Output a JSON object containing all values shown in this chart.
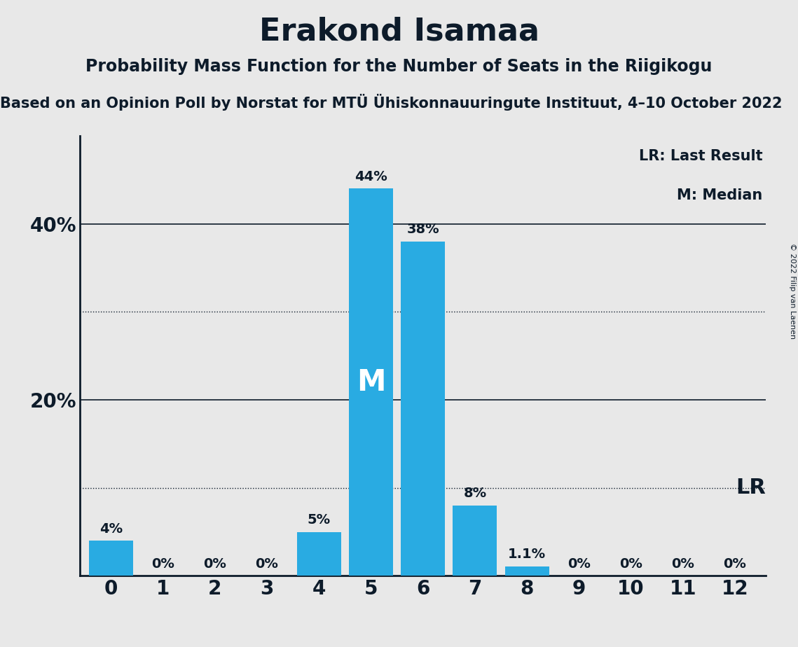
{
  "title": "Erakond Isamaa",
  "subtitle": "Probability Mass Function for the Number of Seats in the Riigikogu",
  "sub_subtitle": "Based on an Opinion Poll by Norstat for MTÜ Ühiskonnauuringute Instituut, 4–10 October 2022",
  "copyright_text": "© 2022 Filip van Laenen",
  "categories": [
    0,
    1,
    2,
    3,
    4,
    5,
    6,
    7,
    8,
    9,
    10,
    11,
    12
  ],
  "values": [
    4,
    0,
    0,
    0,
    5,
    44,
    38,
    8,
    1.1,
    0,
    0,
    0,
    0
  ],
  "bar_labels": [
    "4%",
    "0%",
    "0%",
    "0%",
    "5%",
    "44%",
    "38%",
    "8%",
    "1.1%",
    "0%",
    "0%",
    "0%",
    "0%"
  ],
  "bar_color": "#29ABE2",
  "background_color": "#E8E8E8",
  "median_bar": 5,
  "median_label": "M",
  "lr_label": "LR",
  "legend_lr": "LR: Last Result",
  "legend_m": "M: Median",
  "yticks": [
    20,
    40
  ],
  "ytick_labels": [
    "20%",
    "40%"
  ],
  "dotted_lines": [
    10,
    30
  ],
  "solid_lines": [
    20,
    40
  ],
  "ylim": [
    0,
    50
  ],
  "title_fontsize": 32,
  "subtitle_fontsize": 17,
  "sub_subtitle_fontsize": 15,
  "bar_label_fontsize": 14,
  "ytick_fontsize": 20,
  "xtick_fontsize": 20,
  "text_color": "#0D1B2A",
  "bar_label_color": "#0D1B2A",
  "median_label_color": "white",
  "median_label_fontsize": 30,
  "lr_fontsize": 22,
  "legend_fontsize": 15
}
